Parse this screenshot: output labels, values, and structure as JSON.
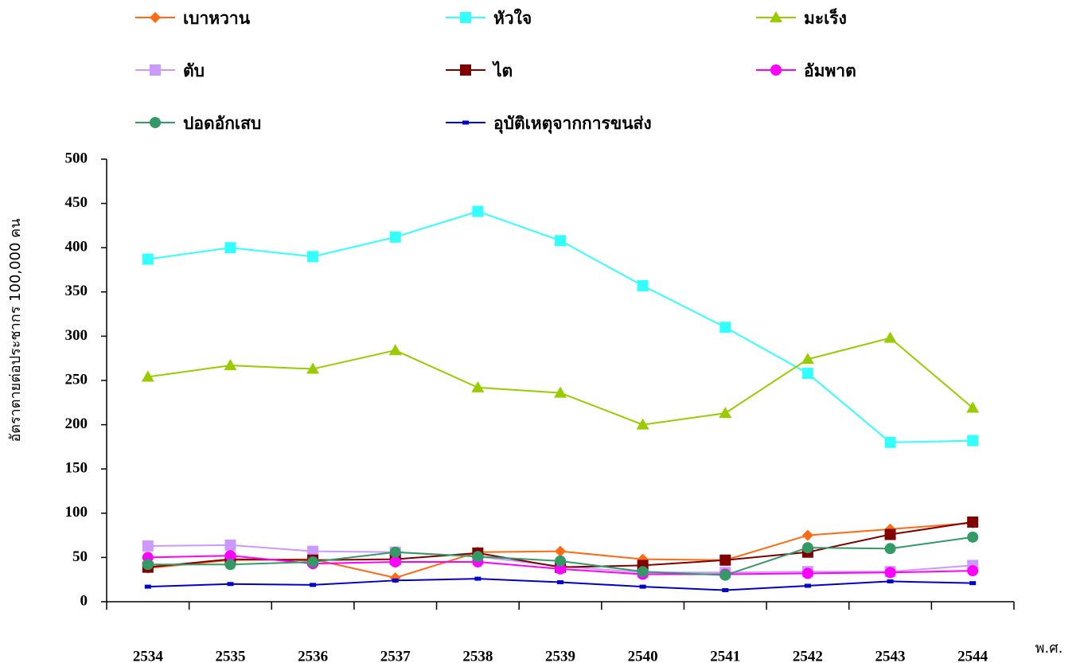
{
  "chart_data": {
    "type": "line",
    "y_label": "อัตราตายต่อประชากร 100,000 คน",
    "x_label": "พ.ศ.",
    "categories": [
      "2534",
      "2535",
      "2536",
      "2537",
      "2538",
      "2539",
      "2540",
      "2541",
      "2542",
      "2543",
      "2544"
    ],
    "ylim": [
      0,
      500
    ],
    "yticks": [
      0,
      50,
      100,
      150,
      200,
      250,
      300,
      350,
      400,
      450,
      500
    ],
    "series": [
      {
        "name": "เบาหวาน",
        "color": "#ff6a13",
        "marker": "diamond",
        "values": [
          38,
          47,
          48,
          27,
          56,
          57,
          48,
          47,
          75,
          82,
          89
        ]
      },
      {
        "name": "หัวใจ",
        "color": "#33ffff",
        "marker": "square",
        "values": [
          387,
          400,
          390,
          412,
          441,
          408,
          357,
          310,
          258,
          180,
          182
        ]
      },
      {
        "name": "มะเร็ง",
        "color": "#99cc00",
        "marker": "triangle",
        "values": [
          254,
          267,
          263,
          284,
          242,
          236,
          200,
          213,
          274,
          298,
          219
        ]
      },
      {
        "name": "ตับ",
        "color": "#cc99ff",
        "marker": "square",
        "values": [
          63,
          64,
          57,
          56,
          51,
          40,
          33,
          33,
          34,
          34,
          41
        ]
      },
      {
        "name": "ไต",
        "color": "#800000",
        "marker": "square",
        "values": [
          39,
          48,
          47,
          48,
          55,
          39,
          41,
          47,
          56,
          76,
          90
        ]
      },
      {
        "name": "อัมพาต",
        "color": "#ff00ff",
        "marker": "circle",
        "values": [
          50,
          52,
          43,
          45,
          45,
          37,
          31,
          31,
          32,
          33,
          35
        ]
      },
      {
        "name": "ปอดอักเสบ",
        "color": "#339966",
        "marker": "circle",
        "values": [
          42,
          42,
          45,
          56,
          51,
          46,
          34,
          30,
          61,
          60,
          73
        ]
      },
      {
        "name": "อุบัติเหตุจากการขนส่ง",
        "color": "#0000cc",
        "marker": "dash",
        "values": [
          17,
          20,
          19,
          24,
          26,
          22,
          17,
          13,
          18,
          23,
          21
        ]
      }
    ]
  }
}
